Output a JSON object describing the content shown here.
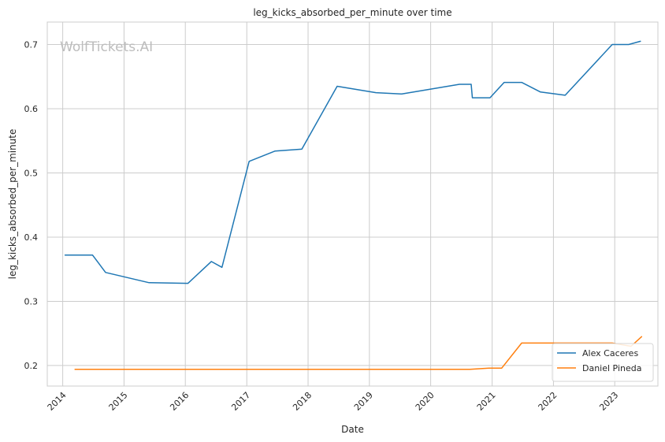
{
  "chart_data": {
    "type": "line",
    "title": "leg_kicks_absorbed_per_minute over time",
    "xlabel": "Date",
    "ylabel": "leg_kicks_absorbed_per_minute",
    "watermark": "WolfTickets.AI",
    "x_ticks": [
      "2014",
      "2015",
      "2016",
      "2017",
      "2018",
      "2019",
      "2020",
      "2021",
      "2022",
      "2023"
    ],
    "y_ticks": [
      "0.2",
      "0.3",
      "0.4",
      "0.5",
      "0.6",
      "0.7"
    ],
    "xlim": [
      "2013-10-01",
      "2023-09-15"
    ],
    "ylim": [
      0.168,
      0.735
    ],
    "grid": true,
    "legend_position": "lower-right",
    "series": [
      {
        "name": "Alex Caceres",
        "color": "#1f77b4",
        "points": [
          [
            "2014-01-15",
            0.372
          ],
          [
            "2014-06-28",
            0.372
          ],
          [
            "2014-09-13",
            0.345
          ],
          [
            "2015-05-30",
            0.329
          ],
          [
            "2016-01-17",
            0.328
          ],
          [
            "2016-06-04",
            0.362
          ],
          [
            "2016-08-06",
            0.353
          ],
          [
            "2017-01-15",
            0.518
          ],
          [
            "2017-06-17",
            0.534
          ],
          [
            "2017-11-25",
            0.537
          ],
          [
            "2018-06-23",
            0.635
          ],
          [
            "2019-02-09",
            0.625
          ],
          [
            "2019-07-13",
            0.623
          ],
          [
            "2020-06-20",
            0.638
          ],
          [
            "2020-08-29",
            0.638
          ],
          [
            "2020-09-05",
            0.617
          ],
          [
            "2020-12-19",
            0.617
          ],
          [
            "2021-03-13",
            0.641
          ],
          [
            "2021-06-26",
            0.641
          ],
          [
            "2021-10-16",
            0.626
          ],
          [
            "2022-03-12",
            0.621
          ],
          [
            "2022-12-17",
            0.7
          ],
          [
            "2023-03-25",
            0.7
          ],
          [
            "2023-06-03",
            0.705
          ]
        ]
      },
      {
        "name": "Daniel Pineda",
        "color": "#ff7f0e",
        "points": [
          [
            "2014-03-15",
            0.194
          ],
          [
            "2020-08-22",
            0.194
          ],
          [
            "2020-12-12",
            0.196
          ],
          [
            "2021-02-27",
            0.196
          ],
          [
            "2021-06-26",
            0.235
          ],
          [
            "2022-12-17",
            0.235
          ],
          [
            "2023-04-08",
            0.23
          ],
          [
            "2023-06-10",
            0.245
          ]
        ]
      }
    ]
  }
}
